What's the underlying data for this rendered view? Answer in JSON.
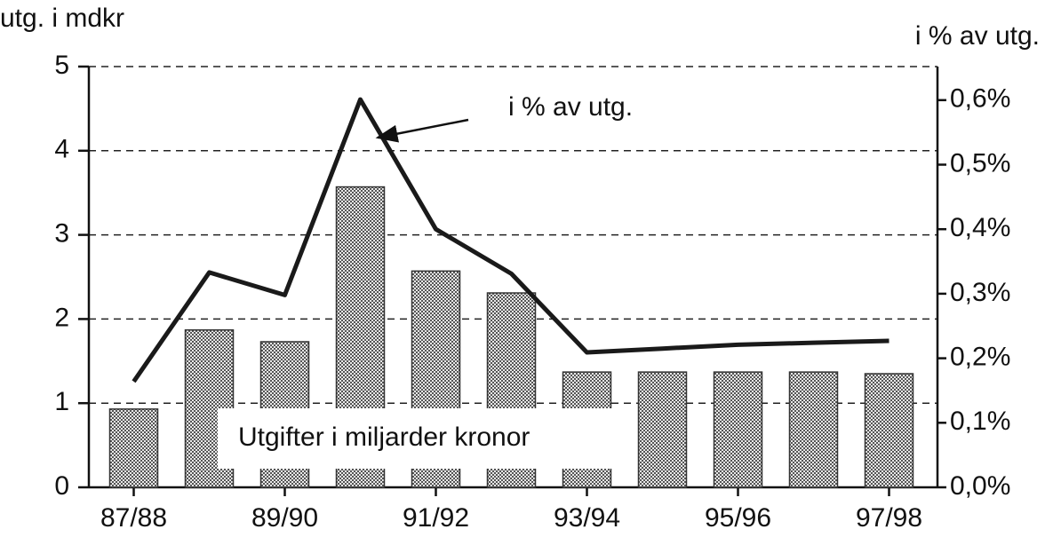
{
  "chart_data": {
    "type": "bar-line",
    "ylabel": "utg. i mdkr",
    "y2label": "i % av utg.",
    "categories": [
      "87/88",
      null,
      "89/90",
      null,
      "91/92",
      null,
      "93/94",
      null,
      "95/96",
      null,
      "97/98"
    ],
    "series": [
      {
        "name": "Utgifter i miljarder kronor",
        "type": "bar",
        "color": "#9a9a9a",
        "values": [
          0.93,
          1.87,
          1.73,
          3.57,
          2.57,
          2.31,
          1.37,
          1.37,
          1.37,
          1.37,
          1.35
        ]
      },
      {
        "name": "i % av utg.",
        "type": "line",
        "axis": "y2",
        "color": "#1a1a1a",
        "values": [
          0.164,
          0.333,
          0.298,
          0.601,
          0.4,
          0.331,
          0.209,
          0.215,
          0.221,
          0.224,
          0.227
        ]
      }
    ],
    "ylim": [
      0,
      5
    ],
    "yticks": [
      0,
      1,
      2,
      3,
      4,
      5
    ],
    "y2lim": [
      0,
      0.652
    ],
    "y2ticks": [
      {
        "value": 0,
        "label": "0,0%"
      },
      {
        "value": 0.1,
        "label": "0,1%"
      },
      {
        "value": 0.2,
        "label": "0,2%"
      },
      {
        "value": 0.3,
        "label": "0,3%"
      },
      {
        "value": 0.4,
        "label": "0,4%"
      },
      {
        "value": 0.5,
        "label": "0,5%"
      },
      {
        "value": 0.6,
        "label": "0,6%"
      }
    ],
    "grid": true
  }
}
